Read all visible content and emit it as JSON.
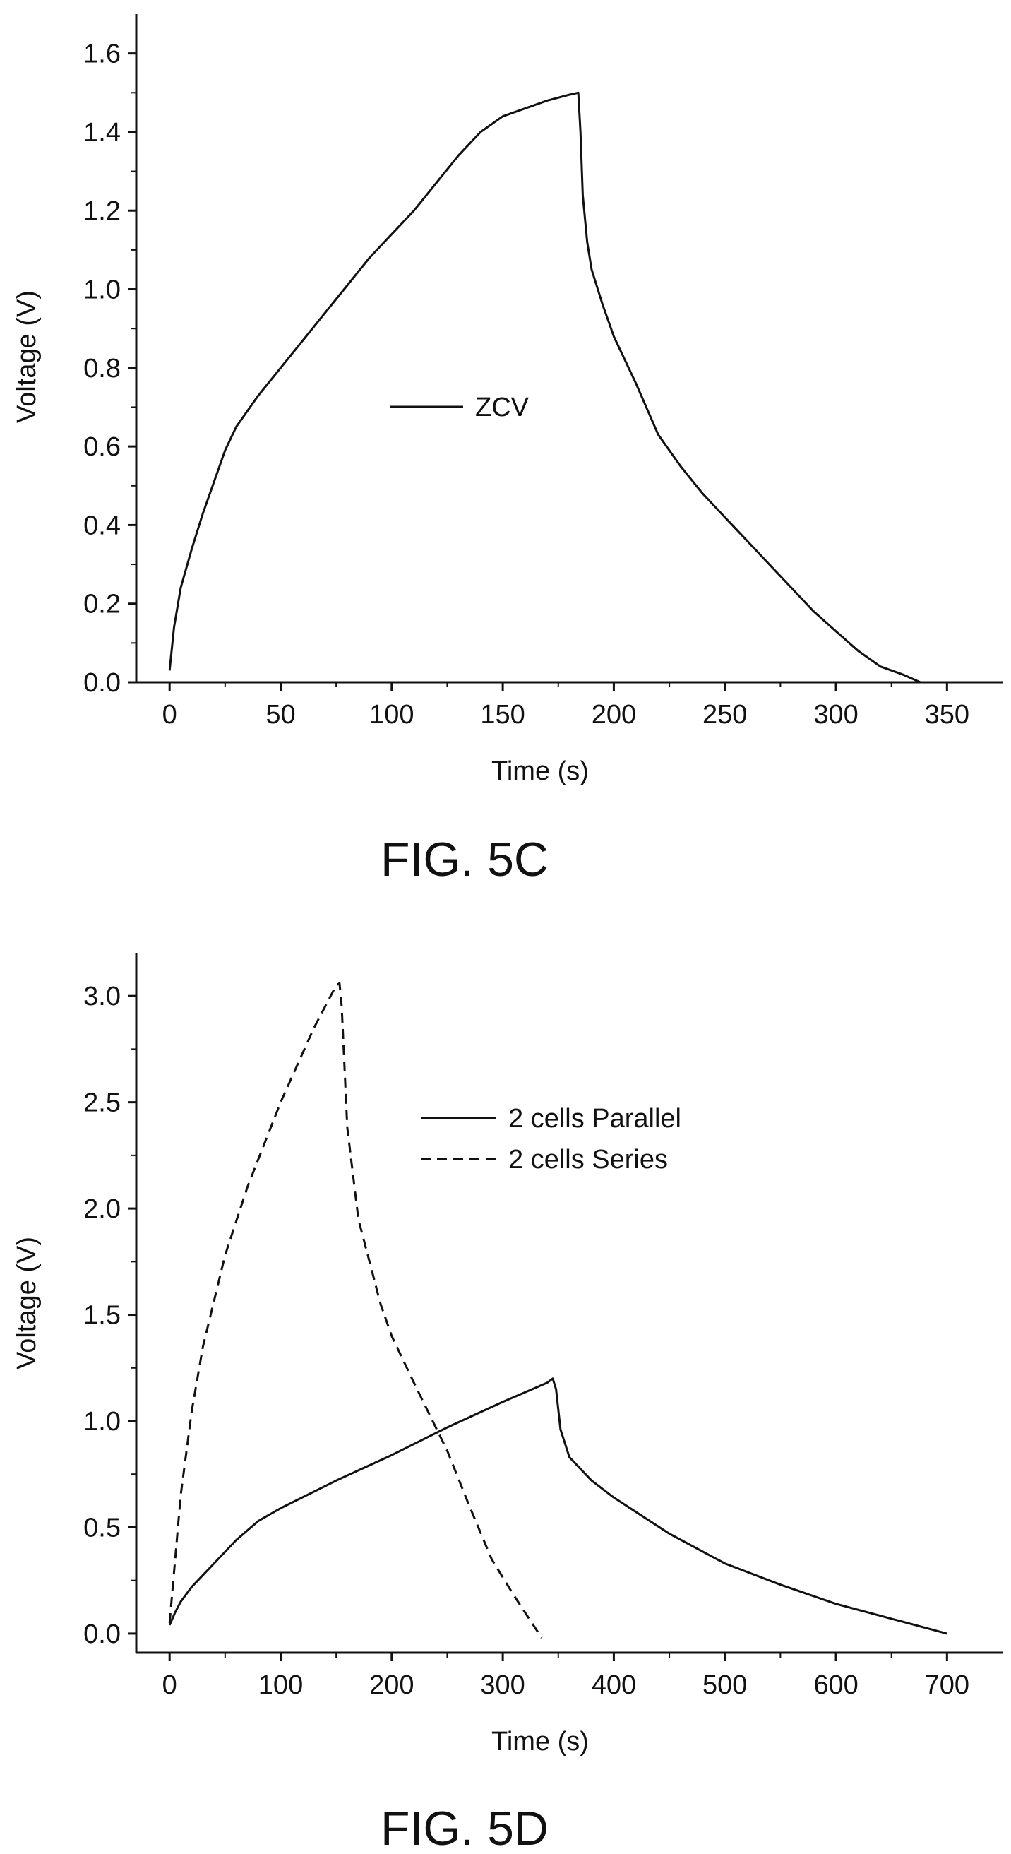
{
  "chart_data": [
    {
      "type": "line",
      "caption": "FIG. 5C",
      "xlabel": "Time (s)",
      "ylabel": "Voltage (V)",
      "xlim": [
        -15,
        375
      ],
      "ylim": [
        0,
        1.7
      ],
      "xticks": [
        0,
        50,
        100,
        150,
        200,
        250,
        300,
        350
      ],
      "xtick_labels": [
        "0",
        "50",
        "100",
        "150",
        "200",
        "250",
        "300",
        "350"
      ],
      "yticks": [
        0.0,
        0.2,
        0.4,
        0.6,
        0.8,
        1.0,
        1.2,
        1.4,
        1.6
      ],
      "ytick_labels": [
        "0.0",
        "0.2",
        "0.4",
        "0.6",
        "0.8",
        "1.0",
        "1.2",
        "1.4",
        "1.6"
      ],
      "grid": false,
      "legend_position": "center",
      "series": [
        {
          "name": "ZCV",
          "dash": "solid",
          "x": [
            0,
            2,
            5,
            10,
            15,
            20,
            25,
            30,
            40,
            50,
            60,
            70,
            80,
            90,
            100,
            110,
            120,
            130,
            140,
            150,
            160,
            170,
            180,
            184,
            185,
            186,
            188,
            190,
            195,
            200,
            210,
            220,
            230,
            240,
            250,
            260,
            270,
            280,
            290,
            300,
            310,
            320,
            330,
            338
          ],
          "y": [
            0.03,
            0.14,
            0.24,
            0.34,
            0.43,
            0.51,
            0.59,
            0.65,
            0.73,
            0.8,
            0.87,
            0.94,
            1.01,
            1.08,
            1.14,
            1.2,
            1.27,
            1.34,
            1.4,
            1.44,
            1.46,
            1.48,
            1.495,
            1.5,
            1.4,
            1.24,
            1.12,
            1.05,
            0.96,
            0.88,
            0.76,
            0.63,
            0.55,
            0.48,
            0.42,
            0.36,
            0.3,
            0.24,
            0.18,
            0.13,
            0.08,
            0.04,
            0.02,
            0.0
          ]
        }
      ]
    },
    {
      "type": "line",
      "caption": "FIG. 5D",
      "xlabel": "Time (s)",
      "ylabel": "Voltage (V)",
      "xlim": [
        -30,
        750
      ],
      "ylim": [
        -0.09,
        3.2
      ],
      "xticks": [
        0,
        100,
        200,
        300,
        400,
        500,
        600,
        700
      ],
      "xtick_labels": [
        "0",
        "100",
        "200",
        "300",
        "400",
        "500",
        "600",
        "700"
      ],
      "yticks": [
        0.0,
        0.5,
        1.0,
        1.5,
        2.0,
        2.5,
        3.0
      ],
      "ytick_labels": [
        "0.0",
        "0.5",
        "1.0",
        "1.5",
        "2.0",
        "2.5",
        "3.0"
      ],
      "grid": false,
      "legend_position": "top-right",
      "series": [
        {
          "name": "2 cells Parallel",
          "dash": "solid",
          "x": [
            0,
            5,
            10,
            20,
            40,
            60,
            80,
            100,
            150,
            200,
            250,
            300,
            340,
            345,
            348,
            352,
            360,
            380,
            400,
            450,
            500,
            550,
            600,
            650,
            700
          ],
          "y": [
            0.04,
            0.1,
            0.15,
            0.22,
            0.33,
            0.44,
            0.53,
            0.59,
            0.72,
            0.84,
            0.97,
            1.09,
            1.18,
            1.2,
            1.15,
            0.96,
            0.83,
            0.72,
            0.64,
            0.47,
            0.33,
            0.23,
            0.14,
            0.07,
            0.0
          ]
        },
        {
          "name": "2 cells Series",
          "dash": "dashed",
          "x": [
            0,
            5,
            10,
            20,
            30,
            50,
            70,
            100,
            130,
            150,
            153,
            155,
            160,
            170,
            190,
            200,
            220,
            250,
            270,
            290,
            310,
            335
          ],
          "y": [
            0.05,
            0.35,
            0.65,
            1.05,
            1.35,
            1.78,
            2.1,
            2.5,
            2.85,
            3.05,
            3.06,
            2.95,
            2.38,
            1.95,
            1.55,
            1.4,
            1.18,
            0.86,
            0.6,
            0.35,
            0.18,
            -0.02
          ]
        }
      ]
    }
  ]
}
